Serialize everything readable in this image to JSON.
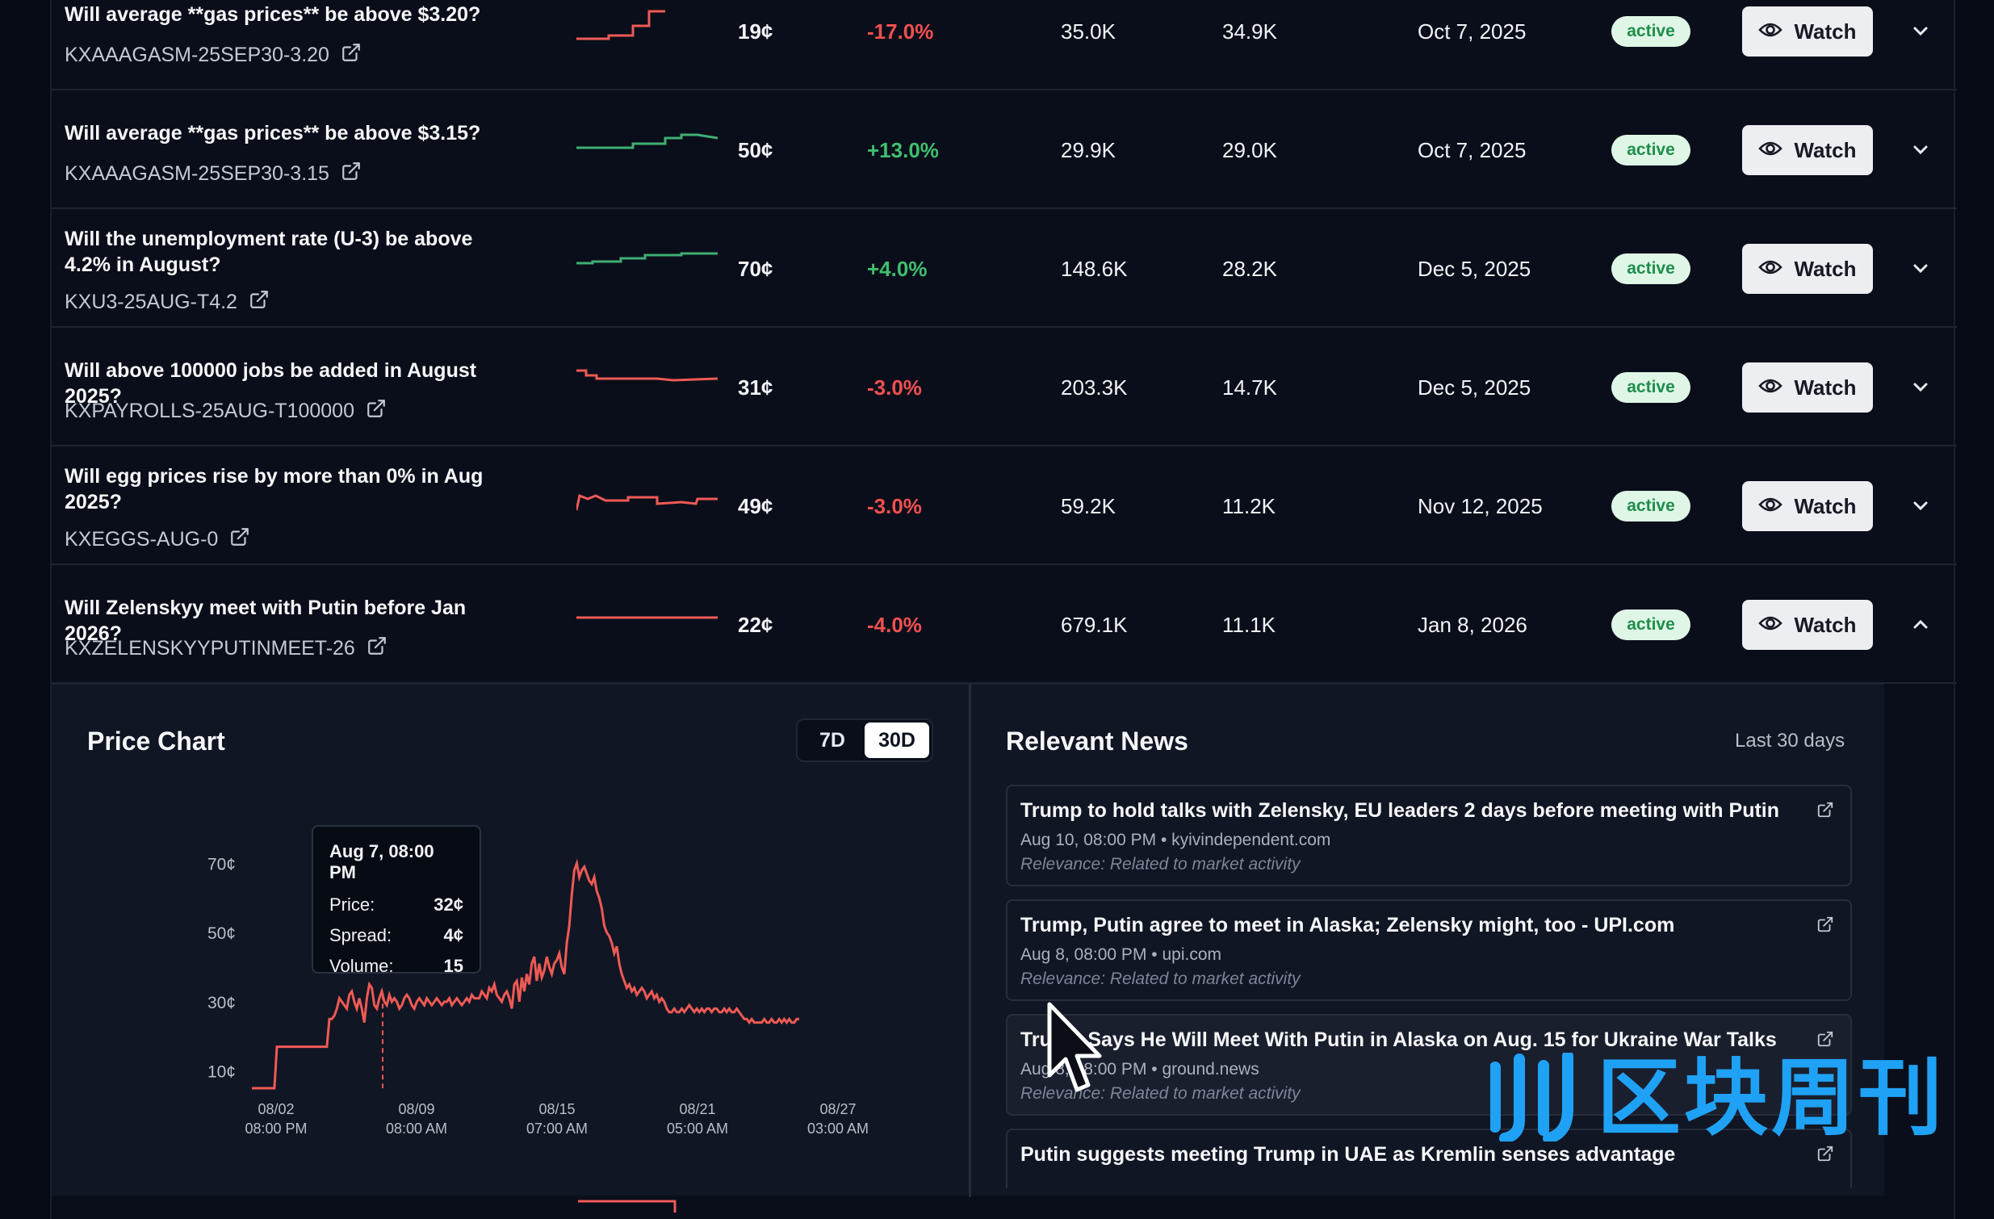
{
  "rows": [
    {
      "question": "Will average **gas prices** be above $3.20?",
      "ticker": "KXAAAGASM-25SEP30-3.20",
      "price": "19¢",
      "change": "-17.0%",
      "change_dir": "neg",
      "volume": "35.0K",
      "liquidity": "34.9K",
      "date": "Oct 7, 2025",
      "status": "active",
      "watch": "Watch"
    },
    {
      "question": "Will average **gas prices** be above $3.15?",
      "ticker": "KXAAAGASM-25SEP30-3.15",
      "price": "50¢",
      "change": "+13.0%",
      "change_dir": "pos",
      "volume": "29.9K",
      "liquidity": "29.0K",
      "date": "Oct 7, 2025",
      "status": "active",
      "watch": "Watch"
    },
    {
      "question": "Will the unemployment rate (U-3) be above 4.2% in August?",
      "ticker": "KXU3-25AUG-T4.2",
      "price": "70¢",
      "change": "+4.0%",
      "change_dir": "pos",
      "volume": "148.6K",
      "liquidity": "28.2K",
      "date": "Dec 5, 2025",
      "status": "active",
      "watch": "Watch"
    },
    {
      "question": "Will above 100000 jobs be added in August 2025?",
      "ticker": "KXPAYROLLS-25AUG-T100000",
      "price": "31¢",
      "change": "-3.0%",
      "change_dir": "neg",
      "volume": "203.3K",
      "liquidity": "14.7K",
      "date": "Dec 5, 2025",
      "status": "active",
      "watch": "Watch"
    },
    {
      "question": "Will egg prices rise by more than 0% in Aug 2025?",
      "ticker": "KXEGGS-AUG-0",
      "price": "49¢",
      "change": "-3.0%",
      "change_dir": "neg",
      "volume": "59.2K",
      "liquidity": "11.2K",
      "date": "Nov 12, 2025",
      "status": "active",
      "watch": "Watch"
    },
    {
      "question": "Will Zelenskyy meet with Putin before Jan 2026?",
      "ticker": "KXZELENSKYYPUTINMEET-26",
      "price": "22¢",
      "change": "-4.0%",
      "change_dir": "neg",
      "volume": "679.1K",
      "liquidity": "11.1K",
      "date": "Jan 8, 2026",
      "status": "active",
      "watch": "Watch"
    }
  ],
  "price_chart": {
    "title": "Price Chart",
    "ranges": [
      "7D",
      "30D"
    ],
    "selected_range": "30D",
    "tooltip": {
      "time": "Aug 7, 08:00 PM",
      "price_label": "Price:",
      "price": "32¢",
      "spread_label": "Spread:",
      "spread": "4¢",
      "volume_label": "Volume:",
      "volume": "15"
    }
  },
  "chart_data": {
    "type": "line",
    "title": "",
    "xlabel": "",
    "ylabel": "",
    "y_ticks": [
      "70¢",
      "50¢",
      "30¢",
      "10¢"
    ],
    "x_ticks": [
      {
        "date": "08/02",
        "time": "08:00 PM"
      },
      {
        "date": "08/09",
        "time": "08:00 AM"
      },
      {
        "date": "08/15",
        "time": "07:00 AM"
      },
      {
        "date": "08/21",
        "time": "05:00 AM"
      },
      {
        "date": "08/27",
        "time": "03:00 AM"
      }
    ],
    "ylim": [
      5,
      75
    ],
    "series": [
      {
        "color": "#ef5a55",
        "values": [
          5,
          5,
          5,
          5,
          5,
          5,
          5,
          5,
          5,
          5,
          17,
          17,
          17,
          17,
          17,
          17,
          17,
          17,
          17,
          17,
          17,
          17,
          17,
          17,
          17,
          17,
          17,
          17,
          17,
          17,
          17,
          25,
          25,
          26,
          28,
          31,
          30,
          29,
          28,
          32,
          33,
          30,
          28,
          31,
          28,
          24,
          31,
          35,
          34,
          29,
          28,
          31,
          33,
          30,
          29,
          32,
          30,
          31,
          30,
          28,
          29,
          31,
          32,
          31,
          29,
          28,
          30,
          31,
          30,
          29,
          31,
          30,
          29,
          30,
          31,
          30,
          29,
          30,
          30,
          31,
          29,
          30,
          31,
          30,
          29,
          30,
          31,
          30,
          32,
          31,
          31,
          31,
          33,
          32,
          31,
          34,
          33,
          35,
          32,
          31,
          30,
          32,
          33,
          31,
          28,
          35,
          36,
          30,
          37,
          33,
          38,
          35,
          41,
          43,
          36,
          41,
          37,
          39,
          43,
          40,
          38,
          41,
          42,
          44,
          40,
          38,
          47,
          52,
          61,
          68,
          70,
          66,
          68,
          69,
          67,
          65,
          64,
          66,
          62,
          60,
          57,
          52,
          50,
          49,
          47,
          44,
          46,
          41,
          38,
          36,
          34,
          35,
          33,
          34,
          32,
          33,
          34,
          33,
          31,
          32,
          33,
          31,
          32,
          30,
          31,
          30,
          28,
          27,
          27,
          28,
          27,
          27,
          28,
          27,
          28,
          29,
          28,
          27,
          28,
          27,
          28,
          27,
          28,
          28,
          27,
          28,
          28,
          27,
          27,
          28,
          27,
          28,
          27,
          27,
          28,
          27,
          26,
          25,
          25,
          24,
          25,
          24,
          24,
          24,
          24,
          25,
          24,
          24,
          25,
          24,
          24,
          25,
          24,
          25,
          24,
          25,
          24,
          24,
          25,
          25
        ]
      }
    ]
  },
  "news": {
    "title": "Relevant News",
    "range": "Last 30 days",
    "items": [
      {
        "headline": "Trump to hold talks with Zelensky, EU leaders 2 days before meeting with Putin",
        "meta": "Aug 10, 08:00 PM • kyivindependent.com",
        "relevance": "Relevance: Related to market activity"
      },
      {
        "headline": "Trump, Putin agree to meet in Alaska; Zelensky might, too - UPI.com",
        "meta": "Aug 8, 08:00 PM • upi.com",
        "relevance": "Relevance: Related to market activity"
      },
      {
        "headline": "Trump Says He Will Meet With Putin in Alaska on Aug. 15 for Ukraine War Talks",
        "meta": "Aug 8, 08:00 PM • ground.news",
        "relevance": "Relevance: Related to market activity"
      },
      {
        "headline": "Putin suggests meeting Trump in UAE as Kremlin senses advantage",
        "meta": "",
        "relevance": ""
      }
    ]
  },
  "watermark": {
    "text": "区块周刊"
  }
}
